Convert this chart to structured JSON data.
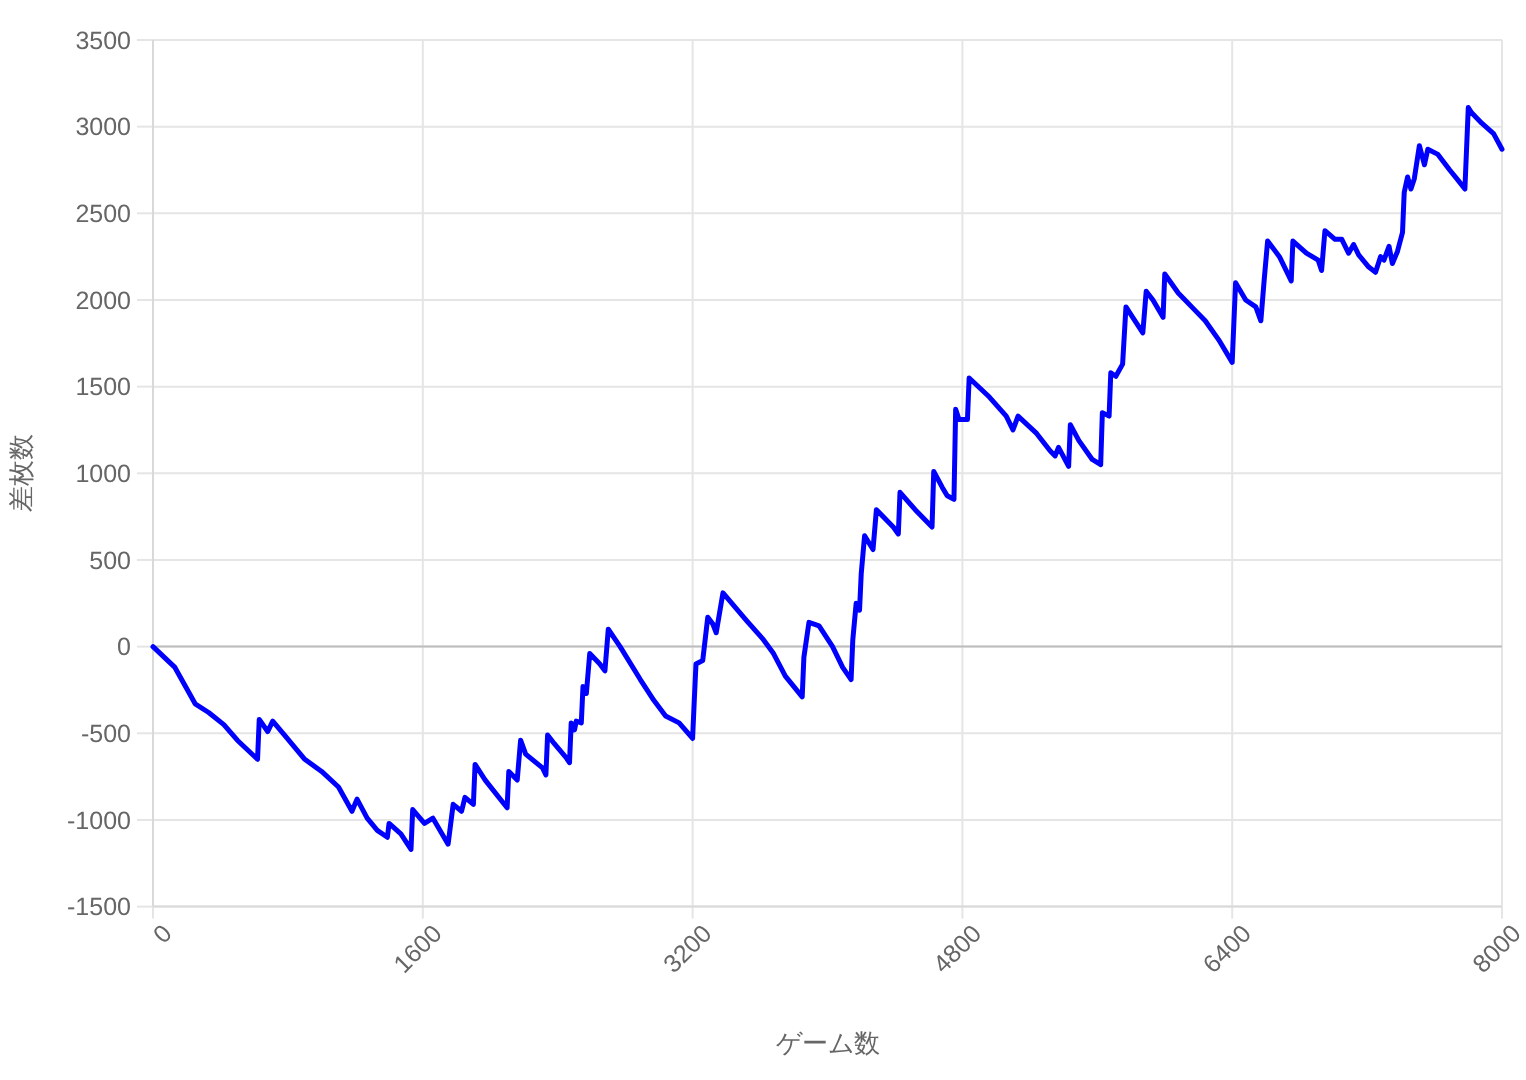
{
  "chart_data": {
    "type": "line",
    "xlabel": "ゲーム数",
    "ylabel": "差枚数",
    "x": [
      0,
      130,
      250,
      330,
      420,
      500,
      620,
      630,
      680,
      710,
      780,
      900,
      1000,
      1100,
      1180,
      1210,
      1270,
      1330,
      1390,
      1400,
      1470,
      1530,
      1540,
      1610,
      1660,
      1750,
      1780,
      1830,
      1850,
      1900,
      1910,
      1970,
      2100,
      2110,
      2160,
      2180,
      2210,
      2310,
      2330,
      2340,
      2380,
      2450,
      2470,
      2480,
      2500,
      2510,
      2540,
      2550,
      2570,
      2590,
      2650,
      2680,
      2700,
      2770,
      2890,
      2970,
      3040,
      3120,
      3200,
      3210,
      3220,
      3260,
      3290,
      3320,
      3340,
      3380,
      3520,
      3620,
      3680,
      3750,
      3850,
      3860,
      3890,
      3950,
      4030,
      4090,
      4140,
      4150,
      4170,
      4190,
      4200,
      4220,
      4270,
      4290,
      4390,
      4420,
      4430,
      4520,
      4620,
      4630,
      4680,
      4710,
      4750,
      4760,
      4780,
      4830,
      4840,
      4960,
      5060,
      5100,
      5130,
      5240,
      5320,
      5350,
      5370,
      5430,
      5440,
      5490,
      5570,
      5620,
      5630,
      5670,
      5680,
      5710,
      5750,
      5770,
      5810,
      5870,
      5890,
      5930,
      5990,
      6000,
      6080,
      6180,
      6240,
      6320,
      6400,
      6420,
      6480,
      6540,
      6570,
      6590,
      6610,
      6680,
      6750,
      6760,
      6840,
      6910,
      6930,
      6950,
      7010,
      7050,
      7090,
      7120,
      7150,
      7210,
      7250,
      7280,
      7300,
      7330,
      7350,
      7380,
      7410,
      7420,
      7440,
      7460,
      7480,
      7510,
      7540,
      7560,
      7620,
      7690,
      7740,
      7780,
      7800,
      7820,
      7880,
      7950,
      8000
    ],
    "series": [
      {
        "color": "#0000ff",
        "values": [
          0,
          -120,
          -330,
          -380,
          -450,
          -540,
          -650,
          -420,
          -490,
          -430,
          -510,
          -650,
          -720,
          -810,
          -950,
          -880,
          -990,
          -1060,
          -1100,
          -1020,
          -1080,
          -1170,
          -940,
          -1020,
          -990,
          -1140,
          -910,
          -950,
          -870,
          -910,
          -680,
          -770,
          -930,
          -720,
          -770,
          -540,
          -620,
          -700,
          -740,
          -510,
          -560,
          -640,
          -670,
          -440,
          -480,
          -430,
          -440,
          -230,
          -270,
          -40,
          -100,
          -140,
          100,
          0,
          -190,
          -310,
          -400,
          -440,
          -530,
          -310,
          -100,
          -80,
          170,
          130,
          80,
          310,
          150,
          40,
          -40,
          -170,
          -290,
          -60,
          140,
          120,
          0,
          -120,
          -190,
          40,
          250,
          210,
          420,
          640,
          560,
          790,
          690,
          650,
          890,
          790,
          690,
          1010,
          920,
          870,
          850,
          1370,
          1310,
          1310,
          1550,
          1440,
          1330,
          1250,
          1330,
          1230,
          1130,
          1100,
          1150,
          1040,
          1280,
          1190,
          1080,
          1050,
          1350,
          1330,
          1580,
          1560,
          1630,
          1960,
          1900,
          1810,
          2050,
          2000,
          1900,
          2150,
          2040,
          1940,
          1880,
          1770,
          1640,
          2100,
          2000,
          1960,
          1880,
          2120,
          2340,
          2250,
          2110,
          2340,
          2270,
          2230,
          2170,
          2400,
          2350,
          2350,
          2270,
          2320,
          2260,
          2190,
          2160,
          2250,
          2230,
          2310,
          2210,
          2280,
          2390,
          2620,
          2710,
          2640,
          2700,
          2890,
          2780,
          2870,
          2840,
          2750,
          2690,
          2640,
          3110,
          3080,
          3020,
          2960,
          2870
        ]
      }
    ],
    "xlim": [
      0,
      8000
    ],
    "ylim": [
      -1500,
      3500
    ],
    "xticks": [
      0,
      1600,
      3200,
      4800,
      6400,
      8000
    ],
    "yticks": [
      -1500,
      -1000,
      -500,
      0,
      500,
      1000,
      1500,
      2000,
      2500,
      3000,
      3500
    ],
    "grid": true,
    "line_style": "solid",
    "ref_lines": [
      {
        "axis": "y",
        "value": 0,
        "color": "#bdbdbd"
      }
    ]
  }
}
